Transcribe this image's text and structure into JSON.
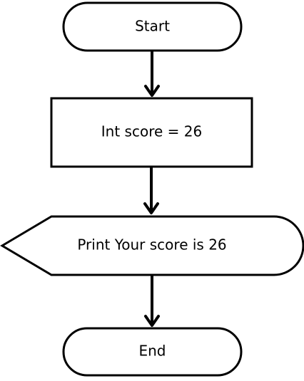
{
  "diagram": {
    "type": "flowchart",
    "colors": {
      "stroke": "#000000",
      "fill": "#ffffff",
      "text": "#000000"
    },
    "nodes": [
      {
        "id": "start",
        "shape": "terminator",
        "label": "Start"
      },
      {
        "id": "assign",
        "shape": "process",
        "label": "Int score = 26"
      },
      {
        "id": "display",
        "shape": "display",
        "label": "Print Your score is 26"
      },
      {
        "id": "end",
        "shape": "terminator",
        "label": "End"
      }
    ],
    "edges": [
      {
        "from": "start",
        "to": "assign"
      },
      {
        "from": "assign",
        "to": "display"
      },
      {
        "from": "display",
        "to": "end"
      }
    ]
  }
}
